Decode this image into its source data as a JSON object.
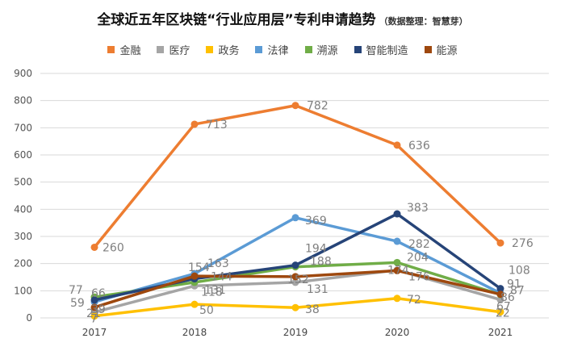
{
  "chart_data": {
    "type": "line",
    "title": "全球近五年区块链“行业应用层”专利申请趋势",
    "subtitle": "（数据整理：智慧芽）",
    "categories": [
      "2017",
      "2018",
      "2019",
      "2020",
      "2021"
    ],
    "ylim": [
      0,
      900
    ],
    "yticks": [
      0,
      100,
      200,
      300,
      400,
      500,
      600,
      700,
      800,
      900
    ],
    "grid": true,
    "legend_position": "top",
    "series": [
      {
        "name": "金融",
        "color": "#ED7D31",
        "values": [
          260,
          713,
          782,
          636,
          276
        ]
      },
      {
        "name": "医疗",
        "color": "#A5A5A5",
        "values": [
          21,
          118,
          131,
          176,
          67
        ]
      },
      {
        "name": "政务",
        "color": "#FFC000",
        "values": [
          7,
          50,
          38,
          72,
          22
        ]
      },
      {
        "name": "法律",
        "color": "#5B9BD5",
        "values": [
          59,
          163,
          369,
          282,
          91
        ]
      },
      {
        "name": "溯源",
        "color": "#70AD47",
        "values": [
          77,
          131,
          188,
          204,
          86
        ]
      },
      {
        "name": "智能制造",
        "color": "#264478",
        "values": [
          66,
          144,
          194,
          383,
          108
        ]
      },
      {
        "name": "能源",
        "color": "#9E480E",
        "values": [
          39,
          154,
          152,
          174,
          87
        ]
      }
    ]
  }
}
